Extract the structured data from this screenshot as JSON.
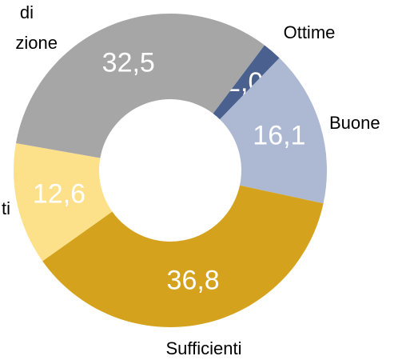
{
  "chart_data": {
    "type": "donut",
    "categories": [
      "Ottime",
      "Buone",
      "Sufficienti",
      "ti",
      "di zione"
    ],
    "values": [
      2.0,
      16.1,
      36.8,
      12.6,
      32.5
    ],
    "value_labels": [
      "2,0",
      "16,1",
      "36,8",
      "12,6",
      "32,5"
    ],
    "colors": [
      "#4a6190",
      "#adb9d3",
      "#d4a21c",
      "#fde08a",
      "#a6a6a6"
    ]
  }
}
